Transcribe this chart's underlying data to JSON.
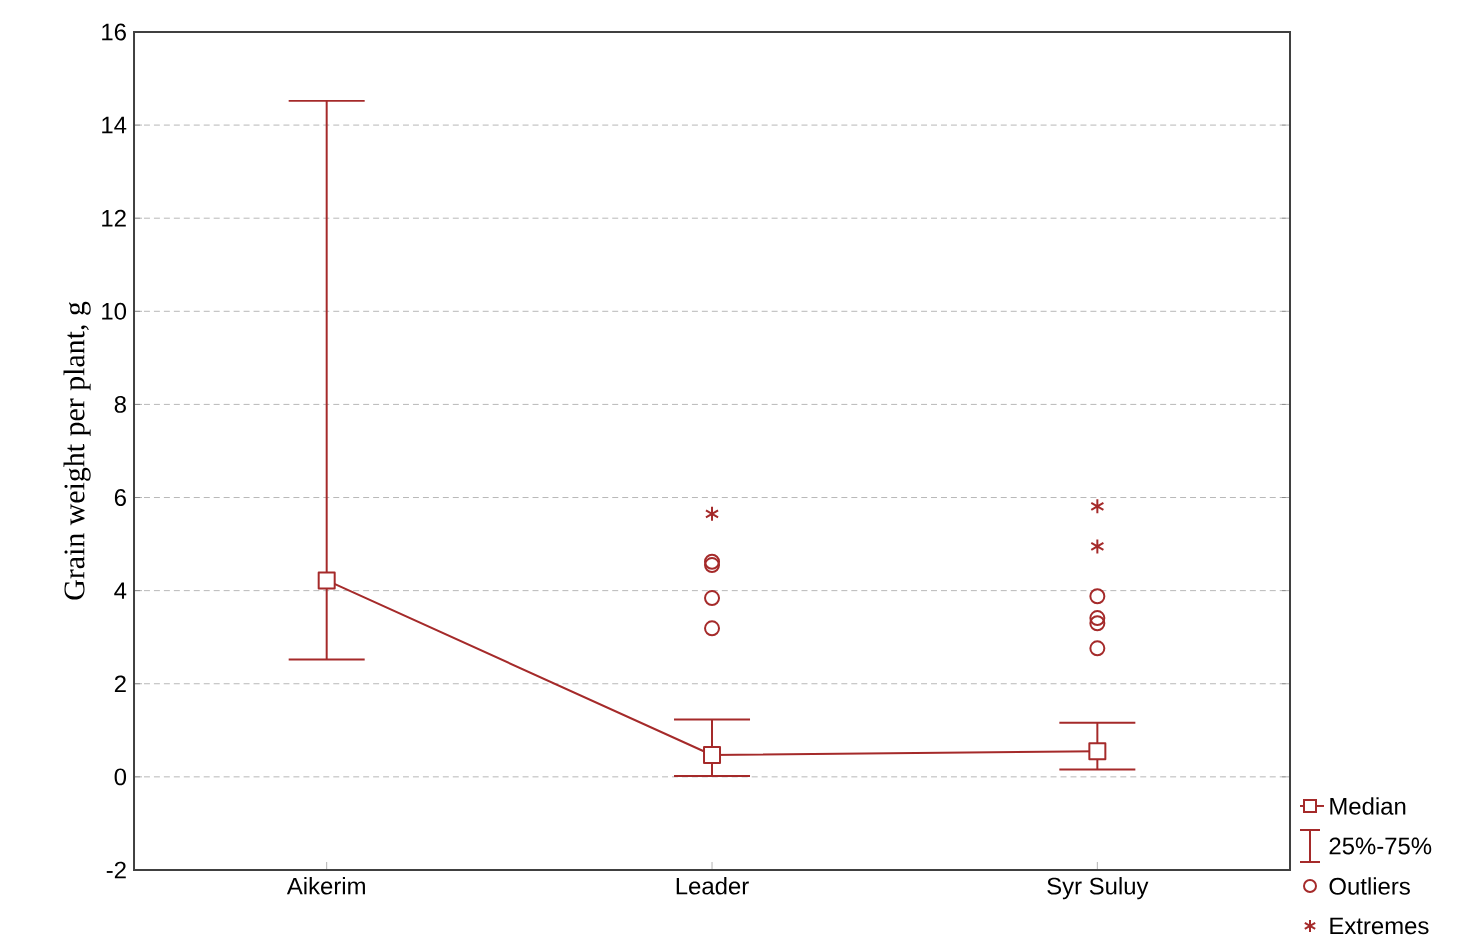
{
  "chart_data": {
    "type": "line",
    "ylabel": "Grain weight per plant, g",
    "categories": [
      "Aikerim",
      "Leader",
      "Syr Suluy"
    ],
    "ylim": [
      -2,
      16
    ],
    "yticks": [
      -2,
      0,
      2,
      4,
      6,
      8,
      10,
      12,
      14,
      16
    ],
    "grid": "y",
    "legend": "bottom right",
    "series": [
      {
        "name": "Median",
        "marker": "square",
        "color": "#a52a2a",
        "values": [
          4.22,
          0.47,
          0.55
        ],
        "errors": [
          [
            2.52,
            14.52
          ],
          [
            0.02,
            1.23
          ],
          [
            0.16,
            1.16
          ]
        ]
      },
      {
        "name": "Outliers",
        "type": "scatter",
        "marker": "circle",
        "color": "#a52a2a",
        "x": [
          "Leader",
          "Leader",
          "Leader",
          "Leader",
          "Syr Suluy",
          "Syr Suluy",
          "Syr Suluy",
          "Syr Suluy"
        ],
        "values": [
          4.62,
          4.55,
          3.84,
          3.19,
          3.88,
          3.41,
          3.3,
          2.76
        ]
      },
      {
        "name": "Extremes",
        "type": "scatter",
        "marker": "cross",
        "color": "#a52a2a",
        "x": [
          "Leader",
          "Syr Suluy",
          "Syr Suluy"
        ],
        "values": [
          5.65,
          5.81,
          4.95
        ]
      }
    ],
    "annotations": [
      "25%-75%"
    ]
  }
}
